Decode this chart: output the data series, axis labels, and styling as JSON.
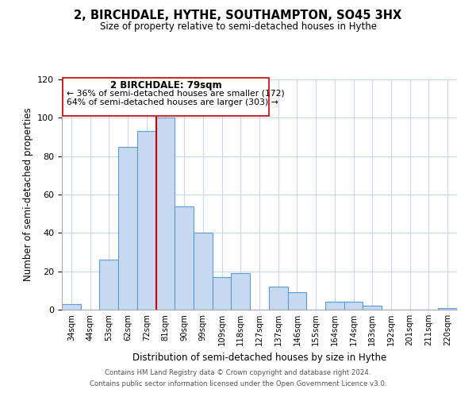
{
  "title": "2, BIRCHDALE, HYTHE, SOUTHAMPTON, SO45 3HX",
  "subtitle": "Size of property relative to semi-detached houses in Hythe",
  "xlabel": "Distribution of semi-detached houses by size in Hythe",
  "ylabel": "Number of semi-detached properties",
  "bin_labels": [
    "34sqm",
    "44sqm",
    "53sqm",
    "62sqm",
    "72sqm",
    "81sqm",
    "90sqm",
    "99sqm",
    "109sqm",
    "118sqm",
    "127sqm",
    "137sqm",
    "146sqm",
    "155sqm",
    "164sqm",
    "174sqm",
    "183sqm",
    "192sqm",
    "201sqm",
    "211sqm",
    "220sqm"
  ],
  "bar_heights": [
    3,
    0,
    26,
    85,
    93,
    100,
    54,
    40,
    17,
    19,
    0,
    12,
    9,
    0,
    4,
    4,
    2,
    0,
    0,
    0,
    1
  ],
  "bar_color": "#c6d9f1",
  "bar_edge_color": "#5b9bd5",
  "highlight_line_color": "#cc0000",
  "highlight_line_index": 5,
  "annotation_title": "2 BIRCHDALE: 79sqm",
  "annotation_line1": "← 36% of semi-detached houses are smaller (172)",
  "annotation_line2": "64% of semi-detached houses are larger (303) →",
  "annotation_box_color": "#ffffff",
  "annotation_box_edge": "#cc0000",
  "ylim": [
    0,
    120
  ],
  "yticks": [
    0,
    20,
    40,
    60,
    80,
    100,
    120
  ],
  "footer_line1": "Contains HM Land Registry data © Crown copyright and database right 2024.",
  "footer_line2": "Contains public sector information licensed under the Open Government Licence v3.0.",
  "bg_color": "#ffffff",
  "grid_color": "#c8d8ea"
}
